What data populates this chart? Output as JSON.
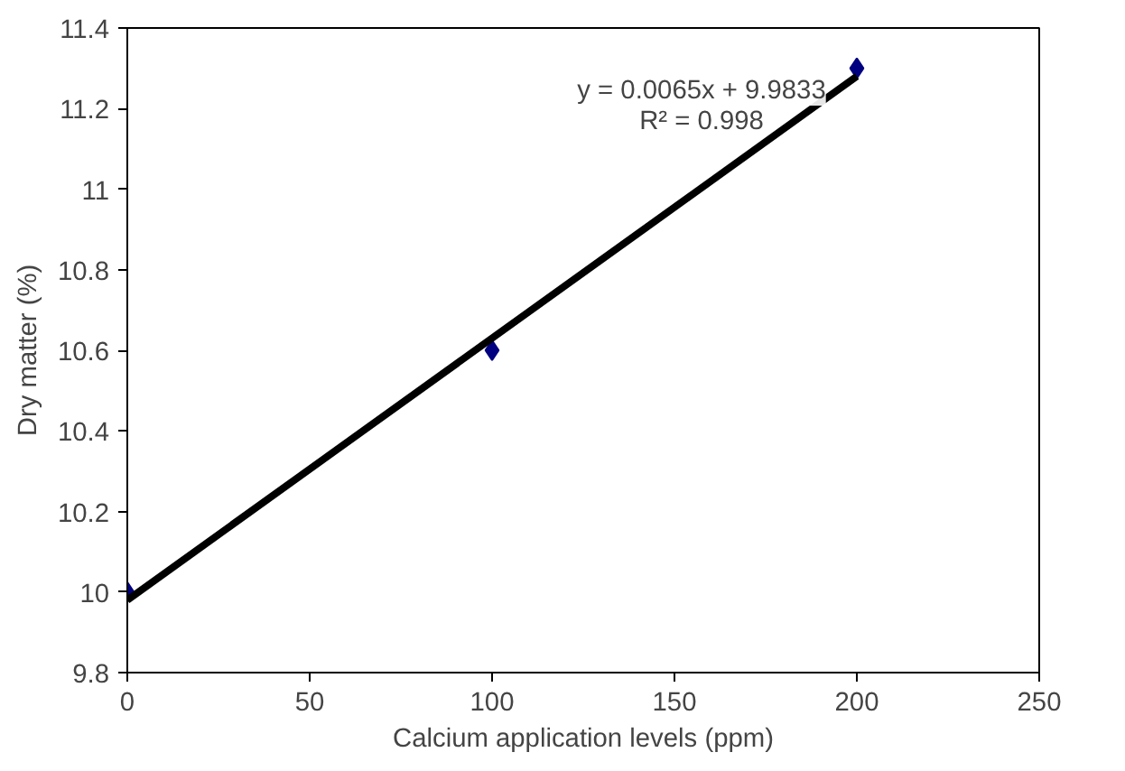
{
  "chart_data": {
    "type": "scatter",
    "xlabel": "Calcium application levels (ppm)",
    "ylabel": "Dry matter (%)",
    "x": [
      0,
      100,
      200
    ],
    "series": [
      {
        "color": "#000080",
        "values": [
          10,
          10.6,
          11.3
        ],
        "marker": "diamond"
      },
      {
        "type": "line",
        "color": "#000000",
        "x": [
          0,
          200
        ],
        "values": [
          9.98,
          11.28
        ],
        "marker": "none"
      }
    ],
    "annotations": [
      "y = 0.0065x + 9.9833",
      "R² = 0.998"
    ],
    "xlim": [
      0,
      250
    ],
    "xticks": [
      0,
      50,
      100,
      150,
      200,
      250
    ],
    "ylim": [
      9.8,
      11.4
    ],
    "yticks": [
      9.8,
      10,
      10.2,
      10.4,
      10.6,
      10.8,
      11,
      11.2,
      11.4
    ],
    "grid": false
  }
}
